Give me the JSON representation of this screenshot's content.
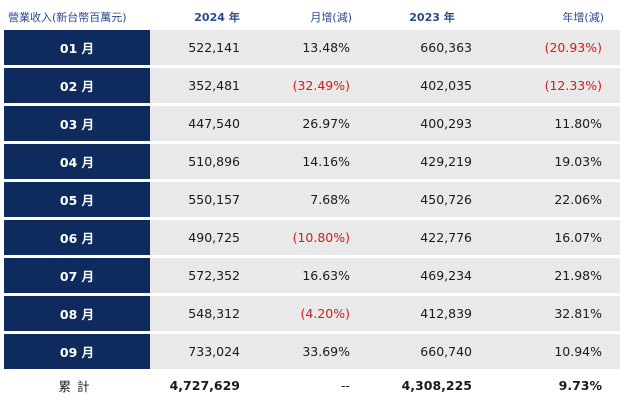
{
  "header": {
    "label": "營業收入(新台幣百萬元)",
    "col_2024": "2024 年",
    "col_mom": "月增(減)",
    "col_2023": "2023 年",
    "col_yoy": "年增(減)"
  },
  "rows": [
    {
      "month": "01 月",
      "v2024": "522,141",
      "mom": "13.48%",
      "v2023": "660,363",
      "yoy": "(20.93%)"
    },
    {
      "month": "02 月",
      "v2024": "352,481",
      "mom": "(32.49%)",
      "v2023": "402,035",
      "yoy": "(12.33%)"
    },
    {
      "month": "03 月",
      "v2024": "447,540",
      "mom": "26.97%",
      "v2023": "400,293",
      "yoy": "11.80%"
    },
    {
      "month": "04 月",
      "v2024": "510,896",
      "mom": "14.16%",
      "v2023": "429,219",
      "yoy": "19.03%"
    },
    {
      "month": "05 月",
      "v2024": "550,157",
      "mom": "7.68%",
      "v2023": "450,726",
      "yoy": "22.06%"
    },
    {
      "month": "06 月",
      "v2024": "490,725",
      "mom": "(10.80%)",
      "v2023": "422,776",
      "yoy": "16.07%"
    },
    {
      "month": "07 月",
      "v2024": "572,352",
      "mom": "16.63%",
      "v2023": "469,234",
      "yoy": "21.98%"
    },
    {
      "month": "08 月",
      "v2024": "548,312",
      "mom": "(4.20%)",
      "v2023": "412,839",
      "yoy": "32.81%"
    },
    {
      "month": "09 月",
      "v2024": "733,024",
      "mom": "33.69%",
      "v2023": "660,740",
      "yoy": "10.94%"
    }
  ],
  "total": {
    "label": "累計",
    "v2024": "4,727,629",
    "mom": "--",
    "v2023": "4,308,225",
    "yoy": "9.73%"
  },
  "colors": {
    "month_bg": "#0f2a5c",
    "cell_bg": "#e9e9e9",
    "header_text": "#2a4a8c",
    "negative": "#d41a1a"
  }
}
